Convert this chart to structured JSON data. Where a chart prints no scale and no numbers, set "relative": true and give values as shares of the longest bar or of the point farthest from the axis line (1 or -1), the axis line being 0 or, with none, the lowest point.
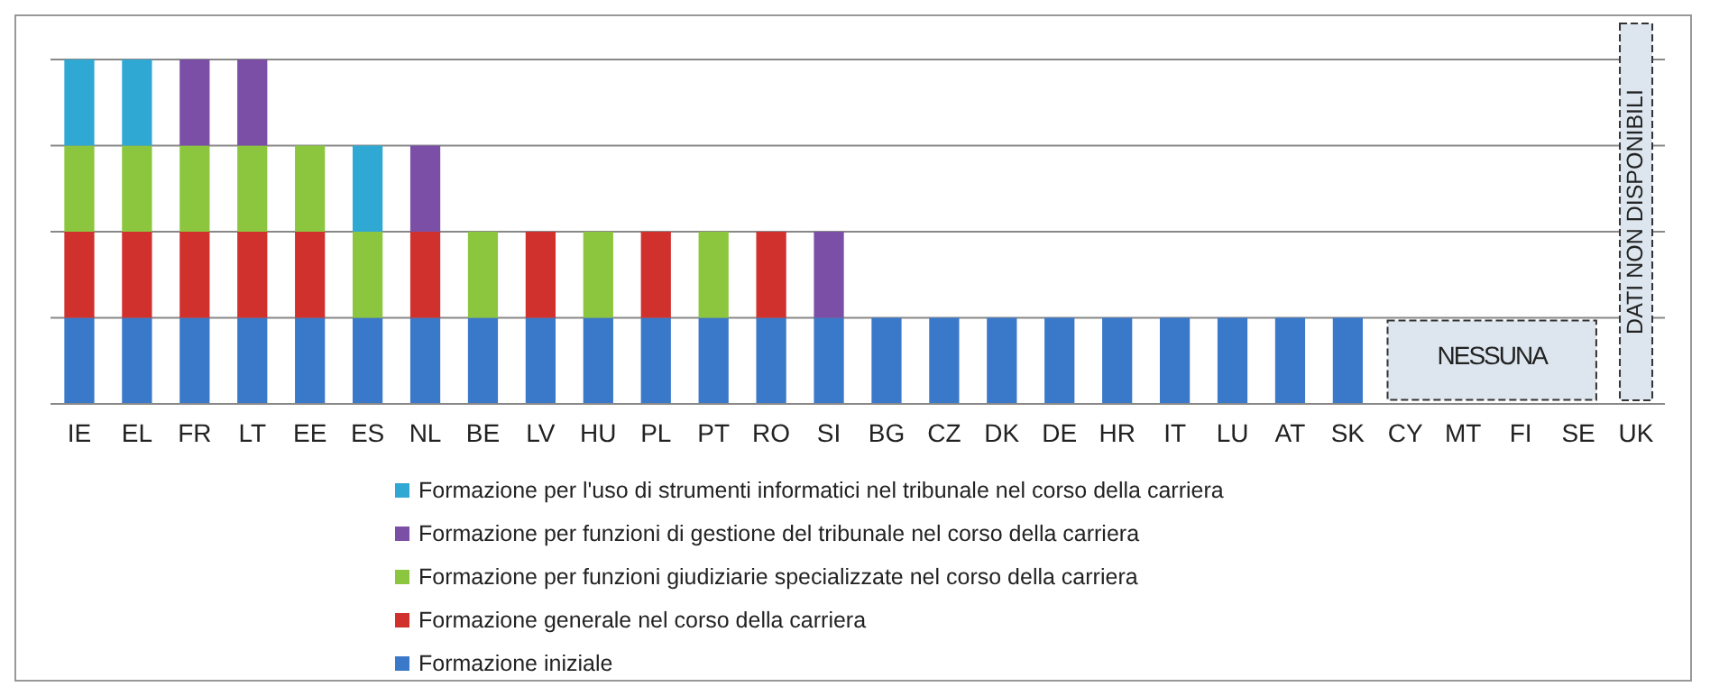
{
  "chart_data": {
    "type": "bar",
    "stacked": true,
    "relative": true,
    "grid": "y",
    "legend": "bottom",
    "categories": [
      "IE",
      "EL",
      "FR",
      "LT",
      "EE",
      "ES",
      "NL",
      "BE",
      "LV",
      "HU",
      "PL",
      "PT",
      "RO",
      "SI",
      "BG",
      "CZ",
      "DK",
      "DE",
      "HR",
      "IT",
      "LU",
      "AT",
      "SK",
      "CY",
      "MT",
      "FI",
      "SE",
      "UK"
    ],
    "series": [
      {
        "name": "Formazione iniziale",
        "color": "#3a78c9",
        "values": [
          0.25,
          0.25,
          0.25,
          0.25,
          0.25,
          0.25,
          0.25,
          0.25,
          0.25,
          0.25,
          0.25,
          0.25,
          0.25,
          0.25,
          0.25,
          0.25,
          0.25,
          0.25,
          0.25,
          0.25,
          0.25,
          0.25,
          0.25,
          0,
          0,
          0,
          0,
          null
        ]
      },
      {
        "name": "Formazione generale nel corso della carriera",
        "color": "#d0312d",
        "values": [
          0.25,
          0.25,
          0.25,
          0.25,
          0.25,
          0,
          0.25,
          0,
          0.25,
          0,
          0.25,
          0,
          0.25,
          0,
          0,
          0,
          0,
          0,
          0,
          0,
          0,
          0,
          0,
          0,
          0,
          0,
          0,
          null
        ]
      },
      {
        "name": "Formazione per funzioni giudiziarie specializzate nel corso della carriera",
        "color": "#8cc63e",
        "values": [
          0.25,
          0.25,
          0.25,
          0.25,
          0.25,
          0.25,
          0,
          0.25,
          0,
          0.25,
          0,
          0.25,
          0,
          0,
          0,
          0,
          0,
          0,
          0,
          0,
          0,
          0,
          0,
          0,
          0,
          0,
          0,
          null
        ]
      },
      {
        "name": "Formazione per funzioni di gestione del tribunale nel corso della carriera",
        "color": "#7b4fa6",
        "values": [
          0,
          0,
          0.25,
          0.25,
          0,
          0,
          0.25,
          0,
          0,
          0,
          0,
          0,
          0,
          0.25,
          0,
          0,
          0,
          0,
          0,
          0,
          0,
          0,
          0,
          0,
          0,
          0,
          0,
          null
        ]
      },
      {
        "name": "Formazione per l'uso di strumenti informatici nel tribunale nel corso della carriera",
        "color": "#2fa9d3",
        "values": [
          0.25,
          0.25,
          0,
          0,
          0,
          0.25,
          0,
          0,
          0,
          0,
          0,
          0,
          0,
          0,
          0,
          0,
          0,
          0,
          0,
          0,
          0,
          0,
          0,
          0,
          0,
          0,
          0,
          null
        ]
      }
    ],
    "bands": [
      {
        "axis": "x",
        "from": "UK",
        "to": "UK",
        "label": "DATI NON DISPONIBILI",
        "color": "#dde6ee"
      }
    ],
    "annotations": [
      "NESSUNA"
    ]
  }
}
